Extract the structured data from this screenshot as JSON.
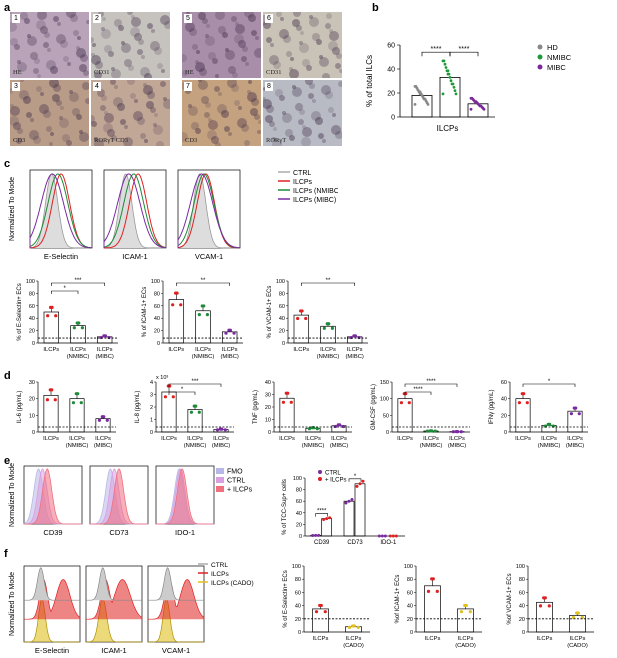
{
  "panels": {
    "a": "a",
    "b": "b",
    "c": "c",
    "d": "d",
    "e": "e",
    "f": "f"
  },
  "micrographs": [
    {
      "num": "1",
      "caption": "HE",
      "bg": "#b9a3b8"
    },
    {
      "num": "2",
      "caption": "CD31",
      "bg": "#c6c3be"
    },
    {
      "num": "5",
      "caption": "HE",
      "bg": "#a98ea9"
    },
    {
      "num": "6",
      "caption": "CD31",
      "bg": "#c9c2b6"
    },
    {
      "num": "3",
      "caption": "CD3",
      "bg": "#b89c87"
    },
    {
      "num": "4",
      "caption": "RORγT CD3",
      "bg": "#c1a796"
    },
    {
      "num": "7",
      "caption": "CD3",
      "bg": "#c4a27f"
    },
    {
      "num": "8",
      "caption": "RORγT",
      "bg": "#b8bbc3"
    }
  ],
  "b": {
    "ylabel": "% of total ILCs",
    "xlabel": "ILCPs",
    "ylim": [
      0,
      60
    ],
    "yticks": [
      "0",
      "20",
      "40",
      "60"
    ],
    "sig": [
      "****",
      "****"
    ],
    "legend": [
      {
        "name": "HD",
        "color": "#888888"
      },
      {
        "name": "NMIBC",
        "color": "#1f9a3a"
      },
      {
        "name": "MIBC",
        "color": "#7a2a9a"
      }
    ]
  },
  "c": {
    "ylabel": "Normalized To Mode",
    "hist_titles": [
      "E-Selectin",
      "ICAM-1",
      "VCAM-1"
    ],
    "legend": [
      {
        "name": "CTRL",
        "color": "#aaaaaa"
      },
      {
        "name": "ILCPs",
        "color": "#e02020"
      },
      {
        "name": "ILCPs (NMIBC)",
        "color": "#1f8a3a"
      },
      {
        "name": "ILCPs (MIBC)",
        "color": "#7a2aa0"
      }
    ],
    "bar_groups": [
      "ILCPs",
      "ILCPs (NMIBC)",
      "ILCPs (MIBC)"
    ],
    "charts": [
      {
        "ylabel": "% of E-Selectin+ ECs",
        "values": [
          50,
          28,
          10
        ],
        "yticks": [
          "0",
          "20",
          "40",
          "60",
          "80",
          "100"
        ],
        "sig": [
          "***",
          "*"
        ]
      },
      {
        "ylabel": "% of ICAM-1+ ECs",
        "values": [
          70,
          52,
          18
        ],
        "yticks": [
          "0",
          "20",
          "40",
          "60",
          "80",
          "100"
        ],
        "sig": [
          "**"
        ]
      },
      {
        "ylabel": "% of VCAM-1+ ECs",
        "values": [
          45,
          27,
          10
        ],
        "yticks": [
          "0",
          "20",
          "40",
          "60",
          "80",
          "100"
        ],
        "sig": [
          "**"
        ]
      }
    ]
  },
  "d": {
    "groups": [
      "ILCPs",
      "ILCPs (NMIBC)",
      "ILCPs (MIBC)"
    ],
    "charts": [
      {
        "ylabel": "IL-6 (pg/mL)",
        "values": [
          22,
          20,
          8
        ],
        "ymax": 30,
        "yticks": [
          "0",
          "10",
          "20",
          "30"
        ],
        "sig": []
      },
      {
        "ylabel": "IL-8 (pg/mL)",
        "values": [
          3.2,
          1.8,
          0.2
        ],
        "ymax": 4,
        "yticks": [
          "0",
          "1",
          "2",
          "3",
          "4"
        ],
        "mult": "x 10³",
        "sig": [
          "***",
          "*"
        ]
      },
      {
        "ylabel": "TNF (pg/mL)",
        "values": [
          27,
          3,
          5
        ],
        "ymax": 40,
        "yticks": [
          "0",
          "10",
          "20",
          "30",
          "40"
        ],
        "sig": []
      },
      {
        "ylabel": "GM-CSF (pg/mL)",
        "values": [
          100,
          3,
          1
        ],
        "ymax": 150,
        "yticks": [
          "0",
          "50",
          "100",
          "150"
        ],
        "sig": [
          "****",
          "****"
        ]
      },
      {
        "ylabel": "IFNγ (pg/mL)",
        "values": [
          40,
          8,
          25
        ],
        "ymax": 60,
        "yticks": [
          "0",
          "20",
          "40",
          "60"
        ],
        "sig": [
          "*"
        ]
      }
    ]
  },
  "e": {
    "ylabel": "Normalized To Mode",
    "hist_titles": [
      "CD39",
      "CD73",
      "IDO-1"
    ],
    "legend": [
      {
        "name": "FMO",
        "color": "#b8b8e8"
      },
      {
        "name": "CTRL",
        "color": "#d8a0e0"
      },
      {
        "name": "+ ILCPs",
        "color": "#f07080"
      }
    ],
    "bar": {
      "ylabel": "% of TCC-Sup+ cells",
      "categories": [
        "CD39",
        "CD73",
        "IDO-1"
      ],
      "series": [
        {
          "name": "CTRL",
          "values": [
            1,
            60,
            0
          ]
        },
        {
          "name": "+ ILCPs",
          "values": [
            30,
            90,
            0
          ]
        }
      ],
      "yticks": [
        "0",
        "20",
        "40",
        "60",
        "80",
        "100"
      ],
      "sig": [
        "****",
        "*"
      ],
      "legend": [
        {
          "name": "CTRL",
          "color": "#7a2aa0"
        },
        {
          "name": "+ ILCPs",
          "color": "#e02020"
        }
      ]
    }
  },
  "f": {
    "ylabel": "Normalized To Mode",
    "hist_titles": [
      "E-Selectin",
      "ICAM-1",
      "VCAM-1"
    ],
    "legend": [
      {
        "name": "CTRL",
        "color": "#aaaaaa"
      },
      {
        "name": "ILCPs",
        "color": "#e02020"
      },
      {
        "name": "ILCPs (CADO)",
        "color": "#e0c020"
      }
    ],
    "bar_groups": [
      "ILCPs",
      "ILCPs (CADO)"
    ],
    "charts": [
      {
        "ylabel": "% of E-Selectin+ ECs",
        "values": [
          35,
          8
        ],
        "yticks": [
          "0",
          "20",
          "40",
          "60",
          "80",
          "100"
        ]
      },
      {
        "ylabel": "%of ICAM-1+ ECs",
        "values": [
          70,
          35
        ],
        "yticks": [
          "0",
          "20",
          "40",
          "60",
          "80",
          "100"
        ]
      },
      {
        "ylabel": "%of VCAM-1+ ECs",
        "values": [
          45,
          25
        ],
        "yticks": [
          "0",
          "20",
          "40",
          "60",
          "80",
          "100"
        ]
      }
    ]
  },
  "chart_data": [
    {
      "type": "bar",
      "ylabel": "% of total ILCs",
      "categories": [
        "ILCPs"
      ],
      "series": [
        {
          "name": "HD",
          "values": [
            18
          ]
        },
        {
          "name": "NMIBC",
          "values": [
            33
          ]
        },
        {
          "name": "MIBC",
          "values": [
            11
          ]
        }
      ],
      "ylim": [
        0,
        60
      ]
    },
    {
      "type": "bar",
      "ylabel": "% of E-Selectin+ ECs",
      "categories": [
        "ILCPs",
        "ILCPs (NMIBC)",
        "ILCPs (MIBC)"
      ],
      "values": [
        50,
        28,
        10
      ],
      "ylim": [
        0,
        100
      ]
    },
    {
      "type": "bar",
      "ylabel": "% of ICAM-1+ ECs",
      "categories": [
        "ILCPs",
        "ILCPs (NMIBC)",
        "ILCPs (MIBC)"
      ],
      "values": [
        70,
        52,
        18
      ],
      "ylim": [
        0,
        100
      ]
    },
    {
      "type": "bar",
      "ylabel": "% of VCAM-1+ ECs",
      "categories": [
        "ILCPs",
        "ILCPs (NMIBC)",
        "ILCPs (MIBC)"
      ],
      "values": [
        45,
        27,
        10
      ],
      "ylim": [
        0,
        100
      ]
    },
    {
      "type": "bar",
      "ylabel": "IL-6 (pg/mL)",
      "categories": [
        "ILCPs",
        "ILCPs (NMIBC)",
        "ILCPs (MIBC)"
      ],
      "values": [
        22,
        20,
        8
      ],
      "ylim": [
        0,
        30
      ]
    },
    {
      "type": "bar",
      "ylabel": "IL-8 (pg/mL)",
      "categories": [
        "ILCPs",
        "ILCPs (NMIBC)",
        "ILCPs (MIBC)"
      ],
      "values": [
        3.2,
        1.8,
        0.2
      ],
      "ylim": [
        0,
        4
      ]
    },
    {
      "type": "bar",
      "ylabel": "TNF (pg/mL)",
      "categories": [
        "ILCPs",
        "ILCPs (NMIBC)",
        "ILCPs (MIBC)"
      ],
      "values": [
        27,
        3,
        5
      ],
      "ylim": [
        0,
        40
      ]
    },
    {
      "type": "bar",
      "ylabel": "GM-CSF (pg/mL)",
      "categories": [
        "ILCPs",
        "ILCPs (NMIBC)",
        "ILCPs (MIBC)"
      ],
      "values": [
        100,
        3,
        1
      ],
      "ylim": [
        0,
        150
      ]
    },
    {
      "type": "bar",
      "ylabel": "IFNγ (pg/mL)",
      "categories": [
        "ILCPs",
        "ILCPs (NMIBC)",
        "ILCPs (MIBC)"
      ],
      "values": [
        40,
        8,
        25
      ],
      "ylim": [
        0,
        60
      ]
    },
    {
      "type": "bar",
      "ylabel": "% of TCC-Sup+ cells",
      "categories": [
        "CD39",
        "CD73",
        "IDO-1"
      ],
      "series": [
        {
          "name": "CTRL",
          "values": [
            1,
            60,
            0
          ]
        },
        {
          "name": "+ ILCPs",
          "values": [
            30,
            90,
            0
          ]
        }
      ],
      "ylim": [
        0,
        100
      ]
    },
    {
      "type": "bar",
      "ylabel": "% of E-Selectin+ ECs",
      "categories": [
        "ILCPs",
        "ILCPs (CADO)"
      ],
      "values": [
        35,
        8
      ],
      "ylim": [
        0,
        100
      ]
    },
    {
      "type": "bar",
      "ylabel": "%of ICAM-1+ ECs",
      "categories": [
        "ILCPs",
        "ILCPs (CADO)"
      ],
      "values": [
        70,
        35
      ],
      "ylim": [
        0,
        100
      ]
    },
    {
      "type": "bar",
      "ylabel": "%of VCAM-1+ ECs",
      "categories": [
        "ILCPs",
        "ILCPs (CADO)"
      ],
      "values": [
        45,
        25
      ],
      "ylim": [
        0,
        100
      ]
    }
  ]
}
